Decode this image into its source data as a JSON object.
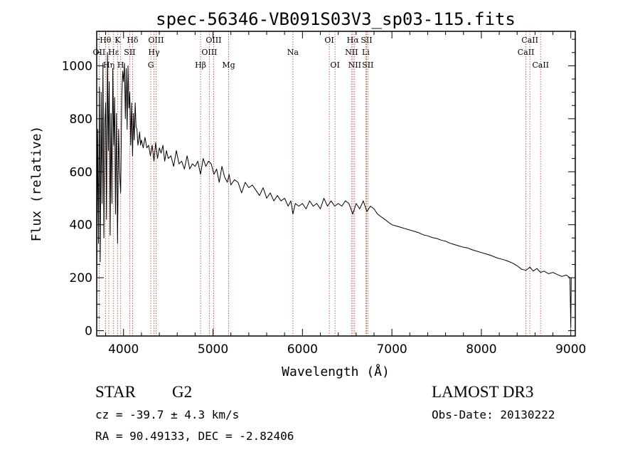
{
  "chart_data": {
    "type": "line",
    "title": "spec-56346-VB091S03V3_sp03-115.fits",
    "xlabel": "Wavelength (Å)",
    "ylabel": "Flux (relative)",
    "xlim": [
      3700,
      9050
    ],
    "ylim": [
      -20,
      1130
    ],
    "xticks": [
      4000,
      5000,
      6000,
      7000,
      8000,
      9000
    ],
    "yticks": [
      0,
      200,
      400,
      600,
      800,
      1000
    ],
    "series": [
      {
        "name": "flux",
        "x": [
          3700,
          3710,
          3720,
          3730,
          3740,
          3750,
          3760,
          3770,
          3780,
          3790,
          3800,
          3810,
          3820,
          3830,
          3840,
          3850,
          3860,
          3870,
          3880,
          3890,
          3900,
          3910,
          3920,
          3933,
          3945,
          3955,
          3968,
          3980,
          3990,
          4000,
          4010,
          4020,
          4030,
          4040,
          4050,
          4060,
          4070,
          4080,
          4090,
          4101,
          4110,
          4120,
          4130,
          4140,
          4150,
          4160,
          4170,
          4180,
          4190,
          4200,
          4220,
          4240,
          4260,
          4280,
          4300,
          4320,
          4340,
          4360,
          4380,
          4400,
          4420,
          4440,
          4460,
          4480,
          4500,
          4530,
          4560,
          4590,
          4620,
          4650,
          4680,
          4710,
          4740,
          4770,
          4800,
          4830,
          4861,
          4890,
          4920,
          4950,
          4980,
          5010,
          5040,
          5070,
          5100,
          5130,
          5160,
          5180,
          5200,
          5240,
          5280,
          5320,
          5360,
          5400,
          5440,
          5480,
          5520,
          5560,
          5600,
          5640,
          5680,
          5720,
          5760,
          5800,
          5840,
          5870,
          5893,
          5920,
          5960,
          6000,
          6040,
          6080,
          6120,
          6160,
          6200,
          6240,
          6280,
          6320,
          6360,
          6400,
          6440,
          6480,
          6520,
          6563,
          6600,
          6640,
          6680,
          6720,
          6760,
          6800,
          6840,
          6880,
          6920,
          6960,
          7000,
          7050,
          7100,
          7150,
          7200,
          7250,
          7300,
          7350,
          7400,
          7450,
          7500,
          7550,
          7600,
          7650,
          7700,
          7750,
          7800,
          7850,
          7900,
          7950,
          8000,
          8050,
          8100,
          8150,
          8200,
          8250,
          8300,
          8350,
          8400,
          8450,
          8498,
          8542,
          8580,
          8620,
          8662,
          8700,
          8750,
          8800,
          8850,
          8900,
          8950,
          8990,
          9000,
          9005
        ],
        "values": [
          150,
          760,
          330,
          920,
          260,
          900,
          480,
          1010,
          350,
          780,
          860,
          420,
          1050,
          680,
          940,
          360,
          820,
          480,
          990,
          700,
          880,
          440,
          820,
          330,
          760,
          600,
          520,
          880,
          980,
          940,
          1010,
          800,
          990,
          760,
          1000,
          840,
          900,
          700,
          860,
          660,
          820,
          720,
          860,
          770,
          760,
          700,
          720,
          750,
          700,
          720,
          690,
          730,
          690,
          700,
          660,
          700,
          640,
          710,
          650,
          690,
          670,
          700,
          640,
          680,
          650,
          660,
          620,
          680,
          630,
          640,
          610,
          660,
          610,
          630,
          620,
          640,
          590,
          650,
          620,
          640,
          630,
          590,
          610,
          560,
          620,
          580,
          560,
          590,
          550,
          570,
          560,
          520,
          560,
          540,
          550,
          530,
          510,
          540,
          500,
          520,
          490,
          510,
          490,
          500,
          470,
          490,
          440,
          480,
          470,
          480,
          460,
          490,
          470,
          480,
          460,
          500,
          470,
          490,
          470,
          480,
          470,
          490,
          480,
          440,
          480,
          460,
          490,
          450,
          470,
          460,
          440,
          430,
          420,
          410,
          400,
          395,
          390,
          385,
          380,
          375,
          370,
          362,
          358,
          352,
          348,
          342,
          338,
          330,
          325,
          320,
          315,
          312,
          305,
          300,
          295,
          290,
          285,
          278,
          272,
          268,
          262,
          255,
          245,
          232,
          228,
          240,
          225,
          235,
          220,
          225,
          215,
          220,
          212,
          205,
          210,
          200,
          10,
          200
        ]
      }
    ],
    "line_markers": [
      {
        "name": "Hθ",
        "x": 3798,
        "row": 0
      },
      {
        "name": "OII",
        "x": 3727,
        "row": 1
      },
      {
        "name": "Hη",
        "x": 3835,
        "row": 2
      },
      {
        "name": "Hε",
        "x": 3889,
        "row": 1
      },
      {
        "name": "K",
        "x": 3933,
        "row": 0
      },
      {
        "name": "H",
        "x": 3968,
        "row": 2
      },
      {
        "name": "Hδ",
        "x": 4101,
        "row": 0
      },
      {
        "name": "SII",
        "x": 4069,
        "row": 1
      },
      {
        "name": "OIII",
        "x": 4363,
        "row": 0
      },
      {
        "name": "Hγ",
        "x": 4340,
        "row": 1
      },
      {
        "name": "G",
        "x": 4305,
        "row": 2
      },
      {
        "name": "Hβ",
        "x": 4861,
        "row": 2
      },
      {
        "name": "OIII",
        "x": 5007,
        "row": 0
      },
      {
        "name": "OIII",
        "x": 4959,
        "row": 1
      },
      {
        "name": "Mg",
        "x": 5175,
        "row": 2
      },
      {
        "name": "Na",
        "x": 5893,
        "row": 1
      },
      {
        "name": "OI",
        "x": 6300,
        "row": 0
      },
      {
        "name": "OI",
        "x": 6364,
        "row": 2
      },
      {
        "name": "Hα",
        "x": 6563,
        "row": 0
      },
      {
        "name": "NII",
        "x": 6548,
        "row": 1
      },
      {
        "name": "NII",
        "x": 6584,
        "row": 2
      },
      {
        "name": "SII",
        "x": 6717,
        "row": 0
      },
      {
        "name": "Li",
        "x": 6708,
        "row": 1
      },
      {
        "name": "SII",
        "x": 6731,
        "row": 2
      },
      {
        "name": "CaII",
        "x": 8542,
        "row": 0
      },
      {
        "name": "CaII",
        "x": 8498,
        "row": 1
      },
      {
        "name": "CaII",
        "x": 8662,
        "row": 2
      }
    ]
  },
  "info": {
    "object_class": "STAR",
    "subclass": "G2",
    "survey": "LAMOST DR3",
    "cz": "cz = -39.7 ± 4.3 km/s",
    "obs_date": "Obs-Date: 20130222",
    "coords": "RA =  90.49133, DEC =  -2.82406"
  },
  "colors": {
    "axis": "#000000",
    "spectrum": "#000000",
    "marker_line": "#c0392b"
  }
}
